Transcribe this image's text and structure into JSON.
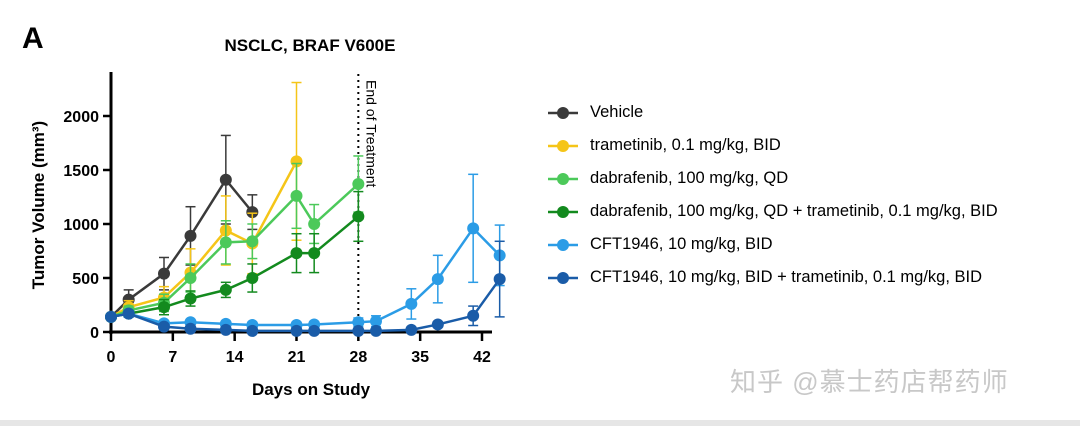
{
  "panel_label": "A",
  "chart_data": {
    "type": "line",
    "title": "NSCLC, BRAF V600E",
    "xlabel": "Days on Study",
    "ylabel": "Tumor Volume (mm³)",
    "xlim": [
      0,
      45
    ],
    "ylim": [
      0,
      2400
    ],
    "xticks": [
      0,
      7,
      14,
      21,
      28,
      35,
      42
    ],
    "yticks": [
      0,
      500,
      1000,
      1500,
      2000
    ],
    "annotation": "End of Treatment",
    "annotation_x": 28,
    "legend_position": "right",
    "series": [
      {
        "name": "Vehicle",
        "color": "#3a3a3a",
        "x": [
          0,
          2,
          6,
          9,
          13,
          16
        ],
        "y": [
          140,
          300,
          540,
          890,
          1410,
          1110
        ],
        "err": [
          20,
          90,
          150,
          270,
          410,
          160
        ]
      },
      {
        "name": "trametinib, 0.1 mg/kg, BID",
        "color": "#f5c518",
        "x": [
          0,
          2,
          6,
          9,
          13,
          16,
          21
        ],
        "y": [
          140,
          230,
          320,
          550,
          940,
          820,
          1580
        ],
        "err": [
          20,
          60,
          100,
          220,
          320,
          280,
          730
        ]
      },
      {
        "name": "dabrafenib, 100 mg/kg, QD",
        "color": "#4cc95a",
        "x": [
          0,
          2,
          6,
          9,
          13,
          16,
          21,
          23,
          28
        ],
        "y": [
          140,
          200,
          270,
          500,
          830,
          840,
          1260,
          1000,
          1370
        ],
        "err": [
          20,
          40,
          80,
          130,
          200,
          160,
          300,
          180,
          260
        ]
      },
      {
        "name": "dabrafenib, 100 mg/kg, QD + trametinib, 0.1 mg/kg, BID",
        "color": "#138a1e",
        "x": [
          0,
          2,
          6,
          9,
          13,
          16,
          21,
          23,
          28
        ],
        "y": [
          140,
          170,
          230,
          310,
          390,
          500,
          730,
          730,
          1070
        ],
        "err": [
          20,
          30,
          70,
          70,
          70,
          130,
          180,
          180,
          230
        ]
      },
      {
        "name": "CFT1946, 10 mg/kg, BID",
        "color": "#2b9ce6",
        "x": [
          0,
          2,
          6,
          9,
          13,
          16,
          21,
          23,
          28,
          30,
          34,
          37,
          41,
          44
        ],
        "y": [
          140,
          170,
          80,
          90,
          75,
          65,
          65,
          70,
          90,
          100,
          260,
          490,
          960,
          710
        ],
        "err": [
          20,
          30,
          20,
          20,
          15,
          15,
          15,
          15,
          40,
          50,
          140,
          220,
          500,
          280
        ]
      },
      {
        "name": "CFT1946, 10 mg/kg, BID + trametinib, 0.1 mg/kg, BID",
        "color": "#1a5ca8",
        "x": [
          0,
          2,
          6,
          9,
          13,
          16,
          21,
          23,
          28,
          30,
          34,
          37,
          41,
          44
        ],
        "y": [
          140,
          170,
          50,
          30,
          20,
          10,
          10,
          10,
          10,
          10,
          20,
          70,
          150,
          490
        ],
        "err": [
          20,
          30,
          10,
          10,
          10,
          5,
          5,
          5,
          5,
          5,
          10,
          20,
          90,
          350
        ]
      }
    ]
  },
  "watermark": "知乎 @慕士药店帮药师"
}
